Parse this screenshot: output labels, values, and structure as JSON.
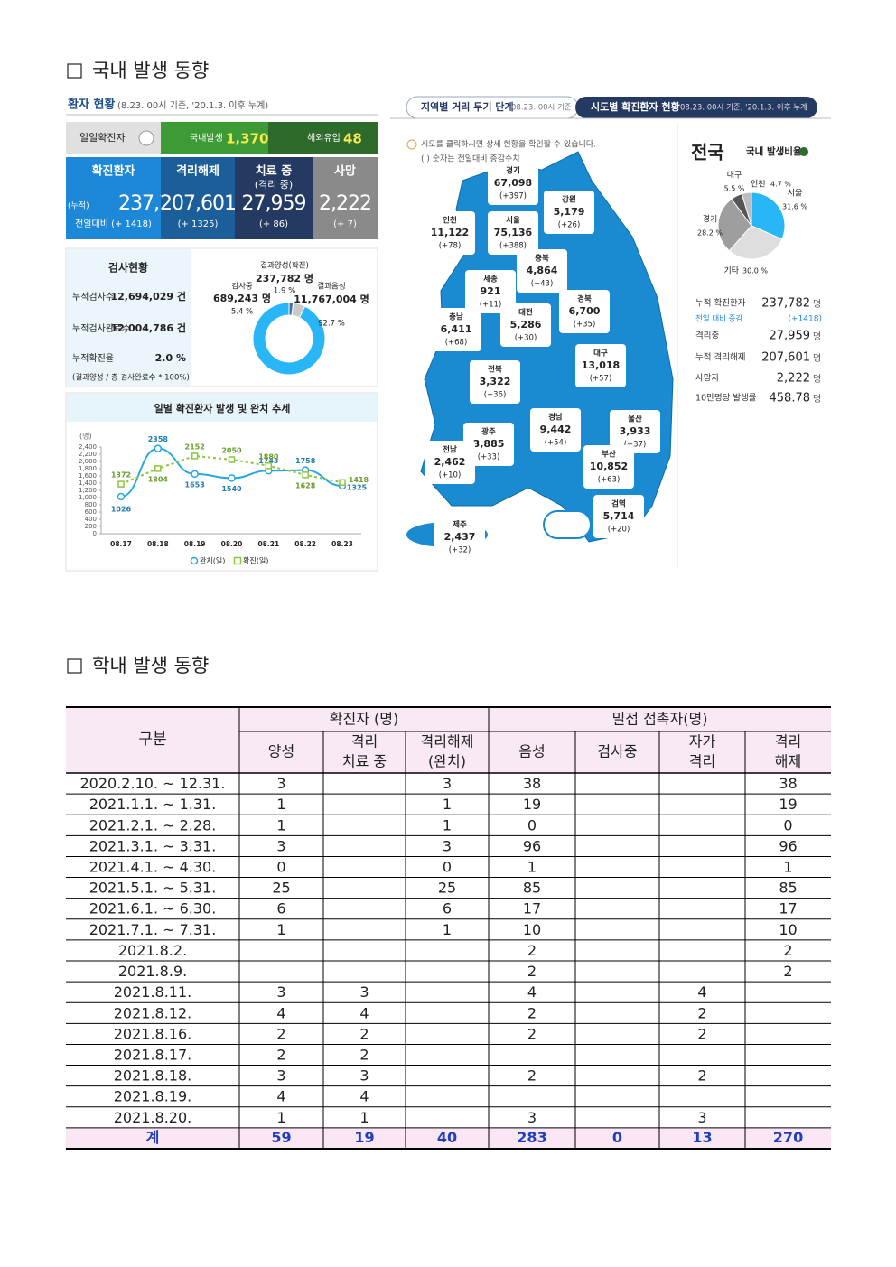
{
  "section1": {
    "heading": "국내 발생 동향"
  },
  "patients": {
    "title": "환자 현황",
    "subtitle": "(8.23. 00시 기준, '20.1.3. 이후 누계)",
    "daily_label": "일일확진자",
    "domestic_label": "국내발생",
    "domestic": "1,370",
    "overseas_label": "해외유입",
    "overseas": "48",
    "cards": [
      {
        "label": "확진환자",
        "prefix": "(누적)",
        "value": "237,782",
        "change": "전일대비 (+ 1418)"
      },
      {
        "label": "격리해제",
        "value": "207,601",
        "change": "(+ 1325)"
      },
      {
        "label": "치료 중",
        "sub": "(격리 중)",
        "value": "27,959",
        "change": "(+ 86)"
      },
      {
        "label": "사망",
        "value": "2,222",
        "change": "(+ 7)"
      }
    ]
  },
  "tests": {
    "title": "검사현황",
    "rows": [
      [
        "누적검사수",
        "12,694,029 건"
      ],
      [
        "누적검사완료수",
        "12,004,786 건"
      ],
      [
        "누적확진율",
        "2.0 %"
      ]
    ],
    "note": "(결과양성 / 총 검사완료수 * 100%)",
    "donut": [
      {
        "name": "결과양성(확진)",
        "count": "237,782 명",
        "pct": {
          "value": 1.9,
          "label": "1.9 %"
        },
        "color": "#4a6fa5"
      },
      {
        "name": "검사중",
        "count": "689,243 명",
        "pct": {
          "value": 5.4,
          "label": "5.4 %"
        },
        "color": "#c9c9c9"
      },
      {
        "name": "결과음성",
        "count": "11,767,004 명",
        "pct": {
          "value": 92.7,
          "label": "92.7 %"
        },
        "color": "#29b6f6"
      }
    ]
  },
  "trend": {
    "title": "일별 확진환자 발생 및 완치 추세",
    "unit": "(명)",
    "categories": [
      "08.17",
      "08.18",
      "08.19",
      "08.20",
      "08.21",
      "08.22",
      "08.23"
    ],
    "series": [
      {
        "name": "완치(일)",
        "color": "#29a8e0",
        "values": [
          1026,
          2358,
          1653,
          1540,
          1743,
          1758,
          1325
        ]
      },
      {
        "name": "확진(일)",
        "color": "#8cc63f",
        "values": [
          1372,
          1804,
          2152,
          2050,
          1880,
          1628,
          1418
        ]
      }
    ],
    "ylim": [
      0,
      2400
    ],
    "yticks": [
      0,
      200,
      400,
      600,
      800,
      {
        "value": 1000,
        "label": "1,000"
      },
      {
        "value": 1200,
        "label": "1,200"
      },
      {
        "value": 1400,
        "label": "1,400"
      },
      {
        "value": 1600,
        "label": "1,600"
      },
      {
        "value": 1800,
        "label": "1,800"
      },
      {
        "value": 2000,
        "label": "2,000"
      },
      {
        "value": 2200,
        "label": "2,200"
      },
      {
        "value": 2400,
        "label": "2,400"
      }
    ]
  },
  "map": {
    "tab1": "지역별 거리 두기 단계",
    "tab1_note": "08.23. 00시 기준",
    "tab2": "시도별 확진환자 현황",
    "tab2_note": "08.23. 00시 기준, '20.1.3. 이후 누계",
    "hint": "시도를 클릭하시면 상세 현황을 확인할 수 있습니다.",
    "hint2": "( ) 숫자는 전일대비 증감수치",
    "regions": [
      {
        "name": "경기",
        "total": "67,098",
        "change": "(+397)"
      },
      {
        "name": "서울",
        "total": "75,136",
        "change": "(+388)"
      },
      {
        "name": "강원",
        "total": "5,179",
        "change": "(+26)"
      },
      {
        "name": "인천",
        "total": "11,122",
        "change": "(+78)"
      },
      {
        "name": "충북",
        "total": "4,864",
        "change": "(+43)"
      },
      {
        "name": "세종",
        "total": "921",
        "change": "(+11)"
      },
      {
        "name": "충남",
        "total": "6,411",
        "change": "(+68)"
      },
      {
        "name": "대전",
        "total": "5,286",
        "change": "(+30)"
      },
      {
        "name": "경북",
        "total": "6,700",
        "change": "(+35)"
      },
      {
        "name": "대구",
        "total": "13,018",
        "change": "(+57)"
      },
      {
        "name": "전북",
        "total": "3,322",
        "change": "(+36)"
      },
      {
        "name": "광주",
        "total": "3,885",
        "change": "(+33)"
      },
      {
        "name": "경남",
        "total": "9,442",
        "change": "(+54)"
      },
      {
        "name": "울산",
        "total": "3,933",
        "change": "(+37)"
      },
      {
        "name": "전남",
        "total": "2,462",
        "change": "(+10)"
      },
      {
        "name": "부산",
        "total": "10,852",
        "change": "(+63)"
      },
      {
        "name": "제주",
        "total": "2,437",
        "change": "(+32)"
      },
      {
        "name": "검역",
        "total": "5,714",
        "change": "(+20)"
      }
    ]
  },
  "national": {
    "title": "전국",
    "ratio_title": "국내 발생비율",
    "pie": [
      {
        "name": "서울",
        "pct": {
          "value": 31.6,
          "label": "31.6 %"
        },
        "color": "#29b6f6"
      },
      {
        "name": "기타",
        "pct": {
          "value": 30.0,
          "label": "30.0 %"
        },
        "color": "#dedede"
      },
      {
        "name": "경기",
        "pct": {
          "value": 28.2,
          "label": "28.2 %"
        },
        "color": "#9e9e9e"
      },
      {
        "name": "대구",
        "pct": {
          "value": 5.5,
          "label": "5.5 %"
        },
        "color": "#555555"
      },
      {
        "name": "인천",
        "pct": {
          "value": 4.7,
          "label": "4.7 %"
        },
        "color": "#bdbdbd"
      }
    ],
    "stats": [
      {
        "label": "누적 확진환자",
        "value": "237,782",
        "unit": "명"
      },
      {
        "label": "전일 대비 증감",
        "value": "(+1418)"
      },
      {
        "label": "격리중",
        "value": "27,959",
        "unit": "명"
      },
      {
        "label": "누적 격리해제",
        "value": "207,601",
        "unit": "명"
      },
      {
        "label": "사망자",
        "value": "2,222",
        "unit": "명"
      },
      {
        "label": "10만명당 발생률",
        "value": "458.78",
        "unit": "명"
      }
    ]
  },
  "section2": {
    "heading": "학내 발생 동향"
  },
  "table": {
    "col0": "구분",
    "group1": "확진자 (명)",
    "group2": "밀접 접촉자(명)",
    "sub": [
      [
        "양성"
      ],
      [
        "격리",
        "치료 중"
      ],
      [
        "격리해제",
        "(완치)"
      ],
      [
        "음성"
      ],
      [
        "검사중"
      ],
      [
        "자가",
        "격리"
      ],
      [
        "격리",
        "해제"
      ]
    ],
    "rows": [
      [
        "2020.2.10. ~ 12.31.",
        3,
        null,
        3,
        38,
        null,
        null,
        38
      ],
      [
        "2021.1.1. ~ 1.31.",
        1,
        null,
        1,
        19,
        null,
        null,
        19
      ],
      [
        "2021.2.1. ~ 2.28.",
        1,
        null,
        1,
        0,
        null,
        null,
        0
      ],
      [
        "2021.3.1. ~ 3.31.",
        3,
        null,
        3,
        96,
        null,
        null,
        96
      ],
      [
        "2021.4.1. ~ 4.30.",
        0,
        null,
        0,
        1,
        null,
        null,
        1
      ],
      [
        "2021.5.1. ~ 5.31.",
        25,
        null,
        25,
        85,
        null,
        null,
        85
      ],
      [
        "2021.6.1. ~ 6.30.",
        6,
        null,
        6,
        17,
        null,
        null,
        17
      ],
      [
        "2021.7.1. ~ 7.31.",
        1,
        null,
        1,
        10,
        null,
        null,
        10
      ],
      [
        "2021.8.2.",
        null,
        null,
        null,
        2,
        null,
        null,
        2
      ],
      [
        "2021.8.9.",
        null,
        null,
        null,
        2,
        null,
        null,
        2
      ],
      [
        "2021.8.11.",
        3,
        3,
        null,
        4,
        null,
        4,
        null
      ],
      [
        "2021.8.12.",
        4,
        4,
        null,
        2,
        null,
        2,
        null
      ],
      [
        "2021.8.16.",
        2,
        2,
        null,
        2,
        null,
        2,
        null
      ],
      [
        "2021.8.17.",
        2,
        2,
        null,
        null,
        null,
        null,
        null
      ],
      [
        "2021.8.18.",
        3,
        3,
        null,
        2,
        null,
        2,
        null
      ],
      [
        "2021.8.19.",
        4,
        4,
        null,
        null,
        null,
        null,
        null
      ],
      [
        "2021.8.20.",
        1,
        1,
        null,
        3,
        null,
        3,
        null
      ]
    ],
    "total": [
      "계",
      59,
      19,
      40,
      283,
      0,
      13,
      270
    ]
  }
}
